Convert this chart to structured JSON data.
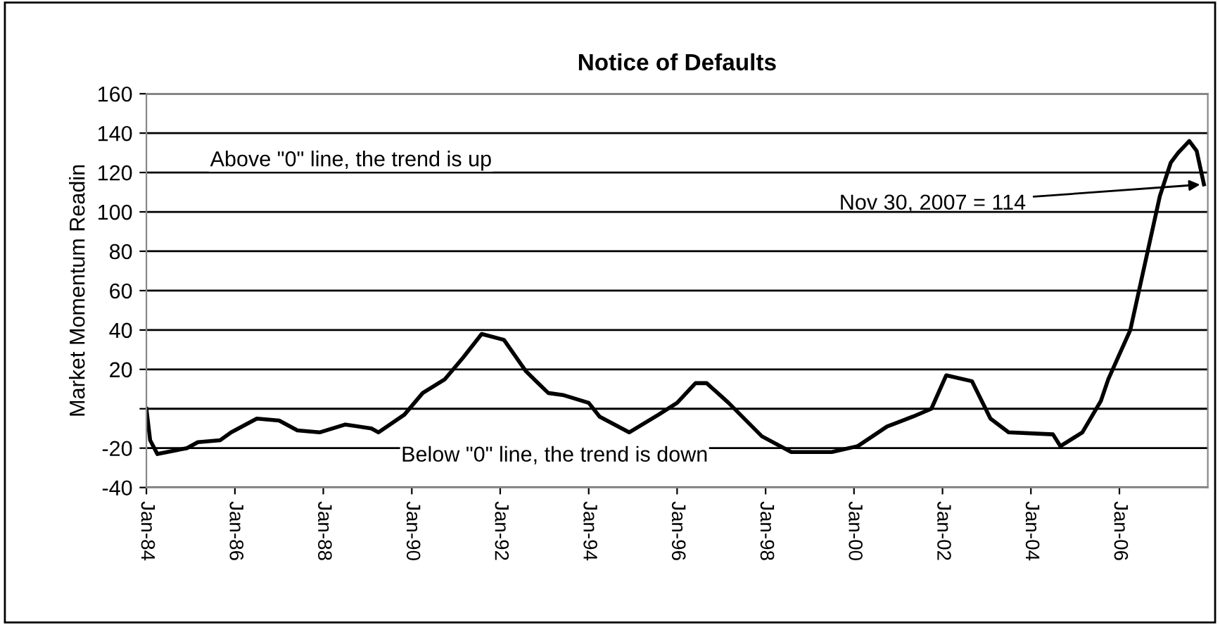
{
  "chart_data": {
    "type": "line",
    "title": "Notice of Defaults",
    "ylabel": "Market Momentum Readin",
    "x": [
      "1984-01",
      "1984-02",
      "1984-04",
      "1984-12",
      "1985-03",
      "1985-09",
      "1985-12",
      "1986-07",
      "1987-01",
      "1987-06",
      "1987-12",
      "1988-07",
      "1989-02",
      "1989-04",
      "1989-11",
      "1990-04",
      "1990-10",
      "1991-03",
      "1991-08",
      "1992-02",
      "1992-08",
      "1993-02",
      "1993-06",
      "1994-01",
      "1994-04",
      "1994-12",
      "1995-08",
      "1996-01",
      "1996-06",
      "1996-09",
      "1997-03",
      "1997-12",
      "1998-08",
      "1999-07",
      "2000-02",
      "2000-10",
      "2001-05",
      "2001-10",
      "2002-02",
      "2002-09",
      "2003-02",
      "2003-07",
      "2004-07",
      "2004-09",
      "2005-03",
      "2005-08",
      "2005-10",
      "2006-04",
      "2006-08",
      "2006-12",
      "2007-03",
      "2007-05",
      "2007-08",
      "2007-10",
      "2007-11-30"
    ],
    "series": [
      {
        "color": "#000000",
        "values": [
          0,
          -16,
          -23,
          -20,
          -17,
          -16,
          -12,
          -5,
          -6,
          -11,
          -12,
          -8,
          -10,
          -12,
          -3,
          8,
          15,
          26,
          38,
          35,
          19,
          8,
          7,
          3,
          -4,
          -12,
          -3,
          3,
          13,
          13,
          3,
          -14,
          -22,
          -22,
          -19,
          -9,
          -4,
          0,
          17,
          14,
          -5,
          -12,
          -13,
          -19,
          -12,
          4,
          15,
          40,
          74,
          108,
          125,
          130,
          136,
          131,
          114
        ]
      }
    ],
    "ylim": [
      -40,
      160
    ],
    "yticks": [
      -40,
      -20,
      {
        "value": 0,
        "label": null
      },
      20,
      40,
      60,
      80,
      100,
      120,
      140,
      160
    ],
    "xlim": [
      "1984-01",
      "2008-01"
    ],
    "xticks": [
      {
        "value": "1984-01",
        "label": "Jan-84"
      },
      {
        "value": "1986-01",
        "label": "Jan-86"
      },
      {
        "value": "1988-01",
        "label": "Jan-88"
      },
      {
        "value": "1990-01",
        "label": "Jan-90"
      },
      {
        "value": "1992-01",
        "label": "Jan-92"
      },
      {
        "value": "1994-01",
        "label": "Jan-94"
      },
      {
        "value": "1996-01",
        "label": "Jan-96"
      },
      {
        "value": "1998-01",
        "label": "Jan-98"
      },
      {
        "value": "2000-01",
        "label": "Jan-00"
      },
      {
        "value": "2002-01",
        "label": "Jan-02"
      },
      {
        "value": "2004-01",
        "label": "Jan-04"
      },
      {
        "value": "2006-01",
        "label": "Jan-06"
      }
    ],
    "grid": "y",
    "legend": false,
    "annotations": [
      "Above \"0\" line, the trend is up",
      "Below \"0\" line, the trend is down",
      {
        "text": "Nov 30, 2007 = 114",
        "x": "2007-11-30",
        "y": 114
      }
    ]
  }
}
